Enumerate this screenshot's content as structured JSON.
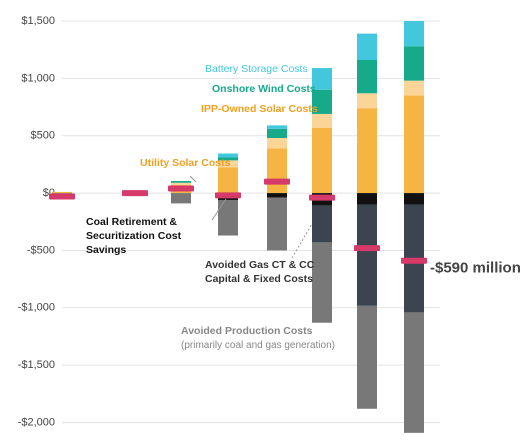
{
  "chart_data": {
    "type": "bar",
    "stacked": true,
    "categories": [
      null,
      null,
      null,
      null,
      null,
      null,
      null,
      null
    ],
    "series": [
      {
        "name": "Utility Solar Costs",
        "color": "#f6b443",
        "text_color": "#f0a020",
        "values": [
          10,
          10,
          70,
          225,
          390,
          570,
          740,
          850
        ]
      },
      {
        "name": "IPP-Owned Solar Costs",
        "color": "#fbd597",
        "text_color": "#f0a020",
        "values": [
          null,
          null,
          20,
          60,
          90,
          120,
          130,
          130
        ]
      },
      {
        "name": "Onshore Wind Costs",
        "color": "#16a98a",
        "text_color": "#16a98a",
        "values": [
          null,
          null,
          15,
          25,
          80,
          210,
          290,
          300
        ]
      },
      {
        "name": "Battery Storage Costs",
        "color": "#43c7dd",
        "text_color": "#43c7dd",
        "values": [
          null,
          null,
          null,
          35,
          30,
          190,
          230,
          220
        ]
      },
      {
        "name": "Coal Retirement & Securitization Cost Savings",
        "color": "#111111",
        "text_color": "#111111",
        "values": [
          null,
          null,
          null,
          -60,
          -40,
          -110,
          -100,
          -100
        ]
      },
      {
        "name": "Avoided Gas CT & CC Capital & Fixed Costs",
        "color": "#3c454f",
        "text_color": "#333333",
        "values": [
          null,
          null,
          null,
          null,
          null,
          -320,
          -880,
          -940
        ]
      },
      {
        "name": "Avoided Production Costs",
        "color": "#787878",
        "text_color": "#888888",
        "values": [
          -40,
          -10,
          -90,
          -310,
          -460,
          -700,
          -900,
          -1050
        ]
      }
    ],
    "net": {
      "color": "#d63a6a",
      "values": [
        -30,
        0,
        40,
        -20,
        100,
        -40,
        -480,
        -590
      ],
      "value_labels": [
        null,
        null,
        null,
        null,
        null,
        null,
        null,
        "-$590 million"
      ]
    },
    "annotations": [
      "(primarily coal and gas generation)"
    ],
    "ylim": [
      -2100,
      1500
    ],
    "yticks": [
      {
        "value": 1500,
        "label": "$1,500"
      },
      {
        "value": 1000,
        "label": "$1,000"
      },
      {
        "value": 500,
        "label": "$500"
      },
      {
        "value": 0,
        "label": "$0"
      },
      {
        "value": -500,
        "label": "-$500"
      },
      {
        "value": -1000,
        "label": "-$1,000"
      },
      {
        "value": -1500,
        "label": "-$1,500"
      },
      {
        "value": -2000,
        "label": "-$2,000"
      }
    ],
    "grid": true
  }
}
